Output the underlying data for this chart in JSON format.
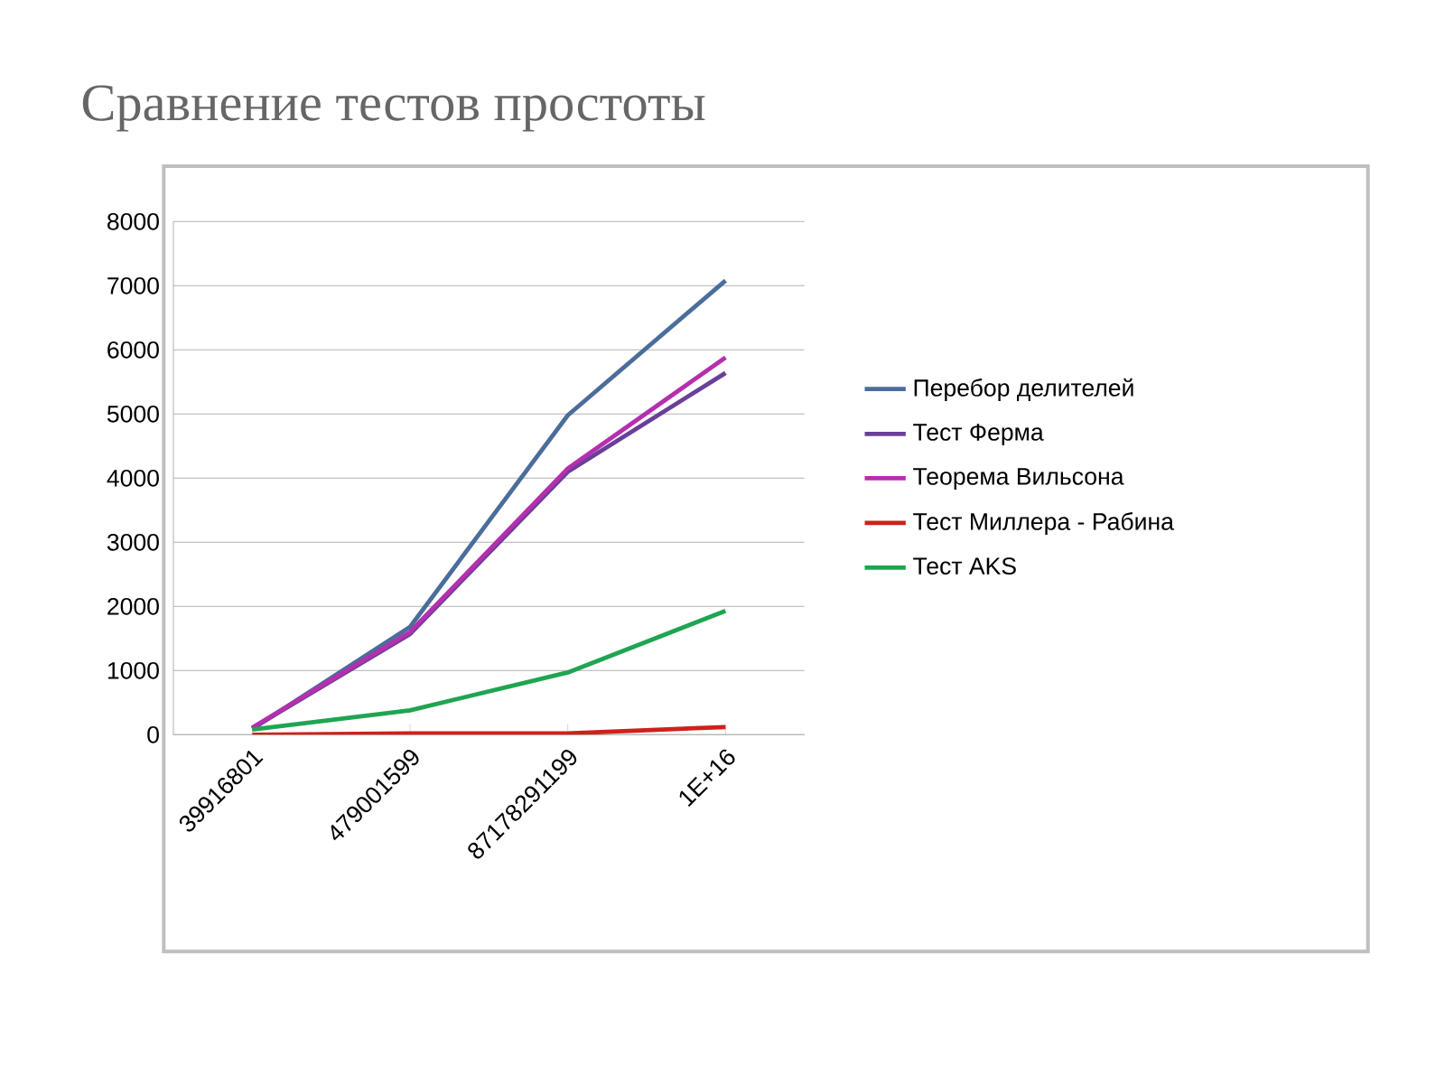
{
  "chart_data": {
    "type": "line",
    "title": "Сравнение тестов простоты",
    "categories": [
      "39916801",
      "479001599",
      "87178291199",
      "1E+16"
    ],
    "series": [
      {
        "name": "Перебор делителей",
        "color": "#4a6d9a",
        "values": [
          90,
          1680,
          4980,
          7080
        ]
      },
      {
        "name": "Тест Ферма",
        "color": "#6a3f9a",
        "values": [
          100,
          1570,
          4100,
          5640
        ]
      },
      {
        "name": "Теорема Вильсона",
        "color": "#b52fae",
        "values": [
          110,
          1600,
          4150,
          5880
        ]
      },
      {
        "name": "Тест Миллера - Рабина",
        "color": "#d0201a",
        "values": [
          0,
          20,
          20,
          120
        ]
      },
      {
        "name": "Тест AKS",
        "color": "#1fa552",
        "values": [
          80,
          380,
          970,
          1930
        ]
      }
    ],
    "ylim": [
      0,
      8000
    ],
    "yticks": [
      0,
      1000,
      2000,
      3000,
      4000,
      5000,
      6000,
      7000,
      8000
    ],
    "grid": "y",
    "legend": "right",
    "marker": "none",
    "line_style": "solid"
  }
}
